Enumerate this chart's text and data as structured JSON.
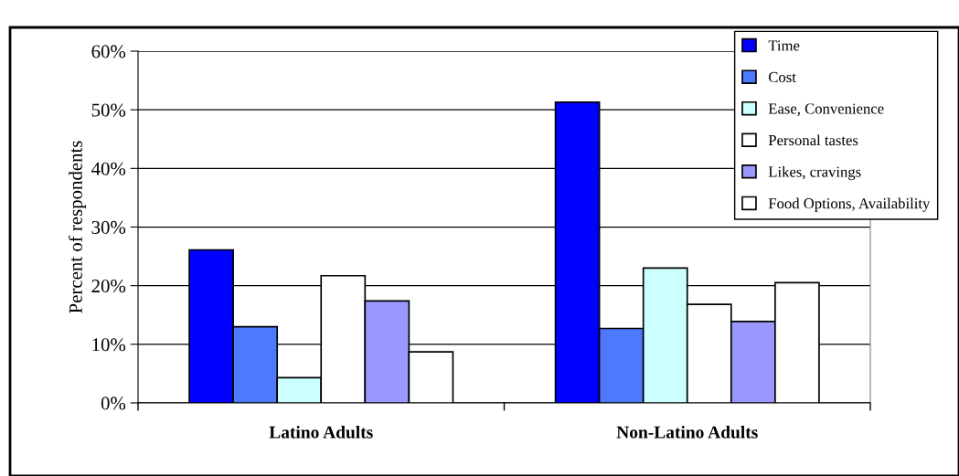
{
  "chart_data": {
    "type": "bar",
    "ylabel": "Percent of respondents",
    "categories": [
      "Latino Adults",
      "Non-Latino Adults"
    ],
    "series": [
      {
        "name": "Time",
        "color": "#0000ff",
        "values": [
          26.1,
          51.3
        ]
      },
      {
        "name": "Cost",
        "color": "#4d79ff",
        "values": [
          13.0,
          12.7
        ]
      },
      {
        "name": "Ease, Convenience",
        "color": "#ccffff",
        "values": [
          4.3,
          23.0
        ]
      },
      {
        "name": "Personal tastes",
        "color": "#ffffff",
        "values": [
          21.7,
          16.8
        ]
      },
      {
        "name": "Likes, cravings",
        "color": "#9999ff",
        "values": [
          17.4,
          13.9
        ]
      },
      {
        "name": "Food Options, Availability",
        "color": "#ffffff",
        "values": [
          8.7,
          20.5
        ]
      }
    ],
    "ylim": [
      0,
      60
    ],
    "yticks": [
      {
        "value": 0,
        "label": "0%"
      },
      {
        "value": 10,
        "label": "10%"
      },
      {
        "value": 20,
        "label": "20%"
      },
      {
        "value": 30,
        "label": "30%"
      },
      {
        "value": 40,
        "label": "40%"
      },
      {
        "value": 50,
        "label": "50%"
      },
      {
        "value": 60,
        "label": "60%"
      }
    ],
    "grid": "y",
    "legend": "top right"
  }
}
